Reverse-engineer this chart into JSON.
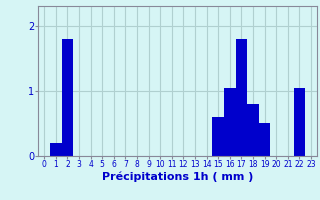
{
  "hours": [
    0,
    1,
    2,
    3,
    4,
    5,
    6,
    7,
    8,
    9,
    10,
    11,
    12,
    13,
    14,
    15,
    16,
    17,
    18,
    19,
    20,
    21,
    22,
    23
  ],
  "values": [
    0,
    0.2,
    1.8,
    0,
    0,
    0,
    0,
    0,
    0,
    0,
    0,
    0,
    0,
    0,
    0,
    0.6,
    1.05,
    1.8,
    0.8,
    0.5,
    0,
    0,
    1.05,
    0
  ],
  "bar_color": "#0000cc",
  "background_color": "#d6f5f5",
  "grid_color": "#b0d0d0",
  "xlabel": "Précipitations 1h ( mm )",
  "ylim": [
    0,
    2.3
  ],
  "yticks": [
    0,
    1,
    2
  ],
  "xlabel_fontsize": 8,
  "tick_color": "#0000cc",
  "bar_width": 1.0
}
